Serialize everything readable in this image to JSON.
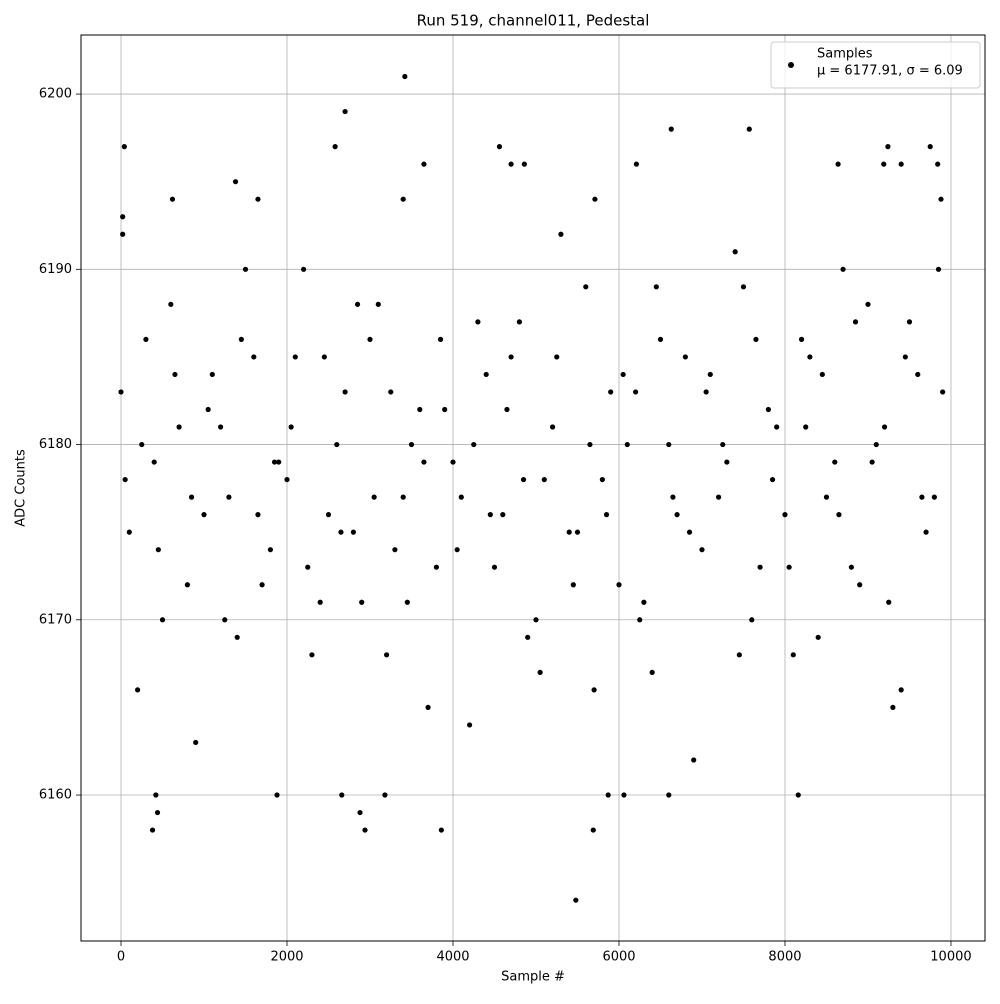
{
  "chart_data": {
    "type": "scatter",
    "title": "Run 519, channel011, Pedestal",
    "x_label": "Sample #",
    "y_label": "ADC Counts",
    "annotation": "μ = 6177.91, σ = 6.09",
    "xlim": [
      -482,
      10410
    ],
    "ylim": [
      6151.67,
      6203.37
    ],
    "xticks": [
      0,
      2000,
      4000,
      6000,
      8000,
      10000
    ],
    "yticks": [
      6160,
      6170,
      6180,
      6190,
      6200
    ],
    "grid": true,
    "legend": "upper right",
    "series": [
      {
        "name": "Samples",
        "color": "#000000",
        "x": [
          20,
          20,
          40,
          380,
          420,
          440,
          3420,
          2700,
          2580,
          5480,
          5690,
          3860,
          2940,
          2880,
          1880,
          2660,
          3180,
          5870,
          6060,
          6600,
          8160,
          6630,
          7570,
          9750,
          9240,
          4560,
          4700,
          4860,
          3650,
          6210,
          8640,
          9190,
          9400,
          9840,
          620,
          1650,
          3400,
          5710,
          9880,
          1380,
          0,
          200,
          400,
          600,
          800,
          1000,
          1200,
          1400,
          1600,
          1800,
          2000,
          2200,
          2400,
          2600,
          2800,
          3000,
          3200,
          3400,
          3600,
          3800,
          4000,
          4200,
          4400,
          4600,
          4800,
          5000,
          5200,
          5400,
          5600,
          5800,
          6000,
          6200,
          6400,
          6600,
          6800,
          7000,
          7200,
          7400,
          7600,
          7800,
          8000,
          8200,
          8400,
          8600,
          8800,
          9000,
          9200,
          9400,
          9600,
          9800,
          100,
          300,
          500,
          700,
          900,
          1100,
          1300,
          1500,
          1700,
          1900,
          2100,
          2300,
          2500,
          2700,
          2900,
          3100,
          3300,
          3500,
          3700,
          3900,
          4100,
          4300,
          4500,
          4700,
          4900,
          5100,
          5300,
          5500,
          5700,
          5900,
          6100,
          6300,
          6500,
          6700,
          6900,
          7100,
          7300,
          7500,
          7700,
          7900,
          8100,
          8300,
          8500,
          8700,
          8900,
          9100,
          9300,
          9500,
          9700,
          9900,
          50,
          250,
          450,
          650,
          850,
          1050,
          1250,
          1450,
          1650,
          1850,
          2050,
          2250,
          2450,
          2650,
          2850,
          3050,
          3250,
          3450,
          3650,
          3850,
          4050,
          4250,
          4450,
          4650,
          4850,
          5050,
          5250,
          5450,
          5650,
          5850,
          6050,
          6250,
          6450,
          6650,
          6850,
          7050,
          7250,
          7450,
          7650,
          7850,
          8050,
          8250,
          8450,
          8650,
          8850,
          9050,
          9250,
          9450,
          9650,
          9850
        ],
        "values": [
          6193,
          6192,
          6197,
          6158,
          6160,
          6159,
          6201,
          6199,
          6197,
          6154,
          6158,
          6158,
          6158,
          6159,
          6160,
          6160,
          6160,
          6160,
          6160,
          6160,
          6160,
          6198,
          6198,
          6197,
          6197,
          6197,
          6196,
          6196,
          6196,
          6196,
          6196,
          6196,
          6196,
          6196,
          6194,
          6194,
          6194,
          6194,
          6194,
          6195,
          6183,
          6166,
          6179,
          6188,
          6172,
          6176,
          6181,
          6169,
          6185,
          6174,
          6178,
          6190,
          6171,
          6180,
          6175,
          6186,
          6168,
          6177,
          6182,
          6173,
          6179,
          6164,
          6184,
          6176,
          6187,
          6170,
          6181,
          6175,
          6189,
          6178,
          6172,
          6183,
          6167,
          6180,
          6185,
          6174,
          6177,
          6191,
          6170,
          6182,
          6176,
          6186,
          6169,
          6179,
          6173,
          6188,
          6181,
          6166,
          6184,
          6177,
          6175,
          6186,
          6170,
          6181,
          6163,
          6184,
          6177,
          6190,
          6172,
          6179,
          6185,
          6168,
          6176,
          6183,
          6171,
          6188,
          6174,
          6180,
          6165,
          6182,
          6177,
          6187,
          6173,
          6185,
          6169,
          6178,
          6192,
          6175,
          6166,
          6183,
          6180,
          6171,
          6186,
          6176,
          6162,
          6184,
          6179,
          6189,
          6173,
          6181,
          6168,
          6185,
          6177,
          6190,
          6172,
          6180,
          6165,
          6187,
          6175,
          6183,
          6178,
          6180,
          6174,
          6184,
          6177,
          6182,
          6170,
          6186,
          6176,
          6179,
          6181,
          6173,
          6185,
          6175,
          6188,
          6177,
          6183,
          6171,
          6179,
          6186,
          6174,
          6180,
          6176,
          6182,
          6178,
          6167,
          6185,
          6172,
          6180,
          6176,
          6184,
          6170,
          6189,
          6177,
          6175,
          6183,
          6180,
          6168,
          6186,
          6178,
          6173,
          6181,
          6184,
          6176,
          6187,
          6179,
          6171,
          6185,
          6177,
          6190
        ]
      }
    ]
  }
}
